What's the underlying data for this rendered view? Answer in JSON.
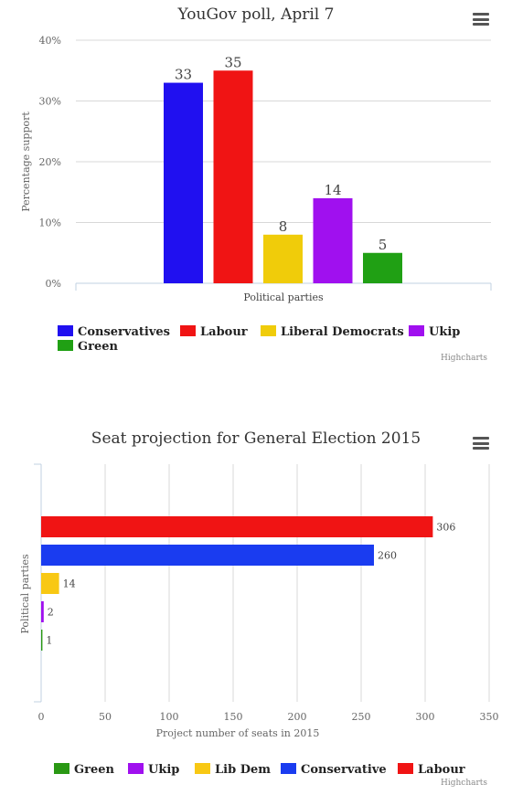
{
  "charts": [
    {
      "title": "YouGov poll, April 7",
      "credits": "Highcharts",
      "chart_data": {
        "type": "bar",
        "orientation": "vertical",
        "title": "YouGov poll, April 7",
        "xlabel": "Political parties",
        "ylabel": "Percentage support",
        "ylim": [
          0,
          40
        ],
        "yticks": [
          "0%",
          "10%",
          "20%",
          "30%",
          "40%"
        ],
        "ytick_values": [
          0,
          10,
          20,
          30,
          40
        ],
        "grid": true,
        "legend": "bottom",
        "series": [
          {
            "name": "Conservatives",
            "value": 33,
            "color": "#2010f0"
          },
          {
            "name": "Labour",
            "value": 35,
            "color": "#f01414"
          },
          {
            "name": "Liberal Democrats",
            "value": 8,
            "color": "#f0cc0a"
          },
          {
            "name": "Ukip",
            "value": 14,
            "color": "#a010ef"
          },
          {
            "name": "Green",
            "value": 5,
            "color": "#20a014"
          }
        ]
      }
    },
    {
      "title": "Seat projection for General Election 2015",
      "credits": "Highcharts",
      "chart_data": {
        "type": "bar",
        "orientation": "horizontal",
        "title": "Seat projection for General Election 2015",
        "xlabel": "Project number of seats in 2015",
        "ylabel": "Political parties",
        "xlim": [
          0,
          350
        ],
        "xticks": [
          "0",
          "50",
          "100",
          "150",
          "200",
          "250",
          "300",
          "350"
        ],
        "xtick_values": [
          0,
          50,
          100,
          150,
          200,
          250,
          300,
          350
        ],
        "grid": true,
        "legend": "bottom",
        "bars_top_to_bottom": [
          {
            "name": "Labour",
            "value": 306,
            "label": "306",
            "color": "#f01414"
          },
          {
            "name": "Conservative",
            "value": 260,
            "label": "260",
            "color": "#1a3cf0"
          },
          {
            "name": "Lib Dem",
            "value": 14,
            "label": "14",
            "color": "#f8c814"
          },
          {
            "name": "Ukip",
            "value": 2,
            "label": "2",
            "color": "#a010ef"
          },
          {
            "name": "Green",
            "value": 1,
            "label": "1",
            "color": "#2a9814"
          }
        ],
        "legend_order": [
          "Green",
          "Ukip",
          "Lib Dem",
          "Conservative",
          "Labour"
        ]
      }
    }
  ]
}
